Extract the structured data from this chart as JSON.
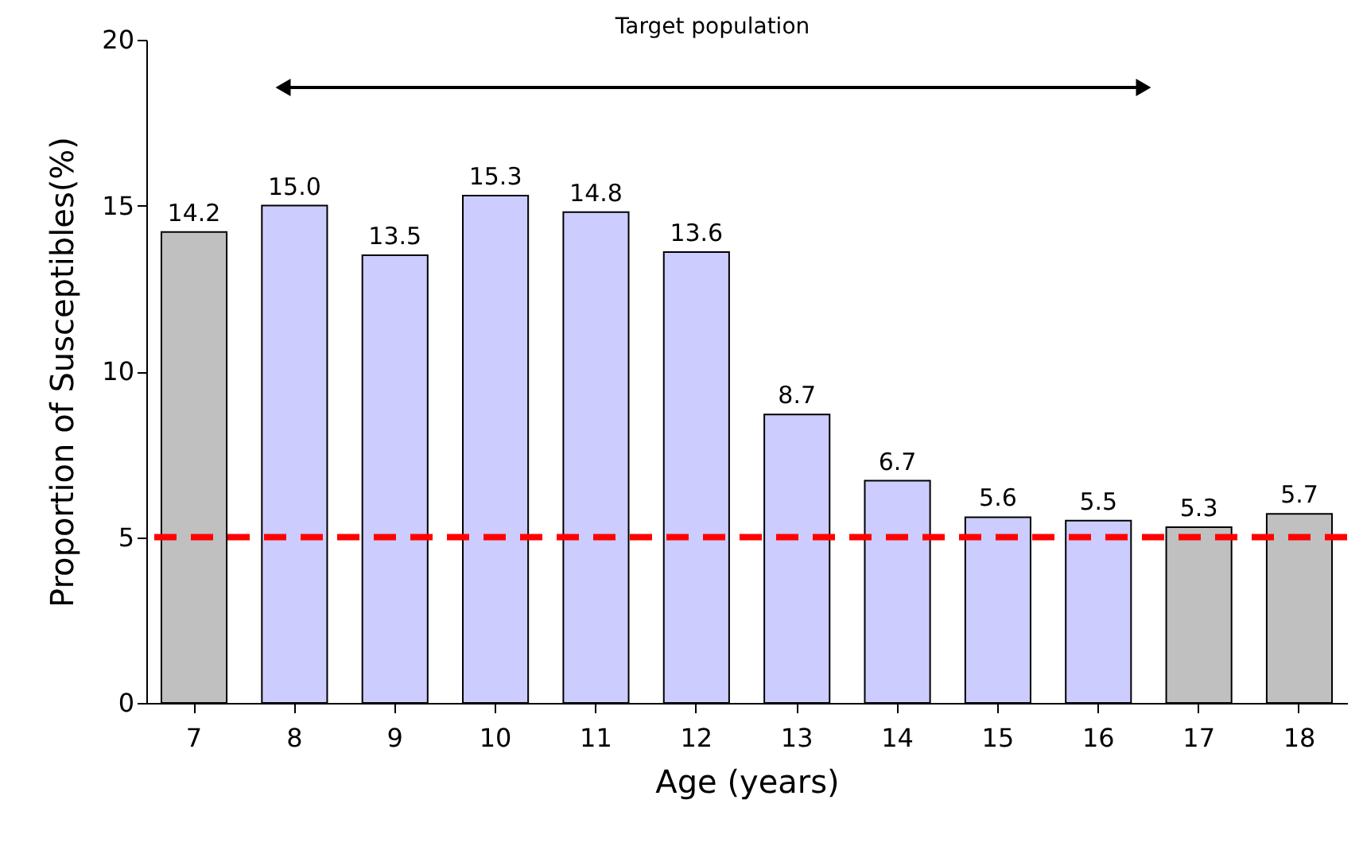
{
  "chart_data": {
    "type": "bar",
    "xlabel": "Age (years)",
    "ylabel": "Proportion of Susceptibles(%)",
    "categories": [
      "7",
      "8",
      "9",
      "10",
      "11",
      "12",
      "13",
      "14",
      "15",
      "16",
      "17",
      "18"
    ],
    "values": [
      14.2,
      15.0,
      13.5,
      15.3,
      14.8,
      13.6,
      8.7,
      6.7,
      5.6,
      5.5,
      5.3,
      5.7
    ],
    "colors": [
      "#c0c0c0",
      "#ccccff",
      "#ccccff",
      "#ccccff",
      "#ccccff",
      "#ccccff",
      "#ccccff",
      "#ccccff",
      "#ccccff",
      "#ccccff",
      "#c0c0c0",
      "#c0c0c0"
    ],
    "value_labels": [
      "14.2",
      "15.0",
      "13.5",
      "15.3",
      "14.8",
      "13.6",
      "8.7",
      "6.7",
      "5.6",
      "5.5",
      "5.3",
      "5.7"
    ],
    "ylim": [
      0,
      20
    ],
    "yticks": [
      0,
      5,
      10,
      15,
      20
    ],
    "grid": false,
    "ref_lines": [
      {
        "axis": "y",
        "value": 5,
        "color": "#ff0000",
        "line_style": "dashed"
      }
    ],
    "annotations": [
      "Target population"
    ]
  }
}
